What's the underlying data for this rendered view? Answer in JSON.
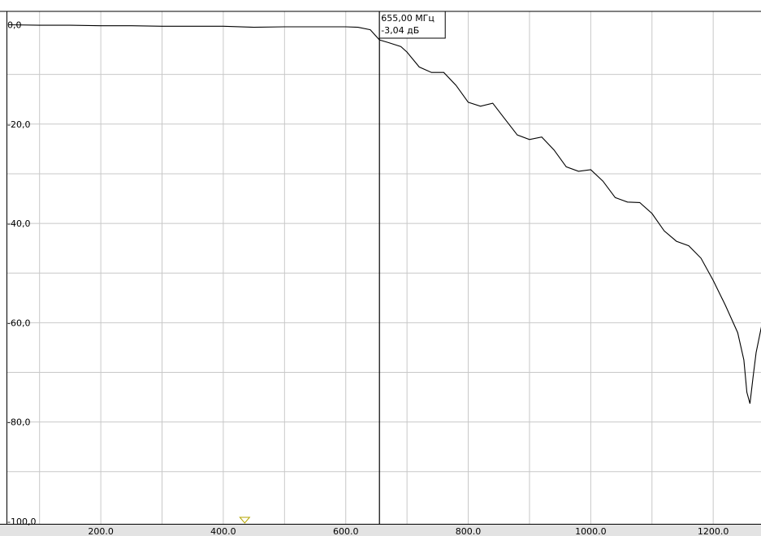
{
  "chart_data": {
    "type": "line",
    "title": "",
    "xlabel": "",
    "ylabel": "",
    "xlim": [
      50,
      1282
    ],
    "ylim": [
      -100,
      2
    ],
    "grid": true,
    "x_ticks": [
      200,
      400,
      600,
      800,
      1000,
      1200
    ],
    "x_tick_labels": [
      "200.0",
      "400.0",
      "600.0",
      "800.0",
      "1000.0",
      "1200.0"
    ],
    "y_ticks": [
      0,
      -20,
      -40,
      -60,
      -80,
      -100
    ],
    "y_tick_labels": [
      "0,0",
      "-20,0",
      "-40,0",
      "-60,0",
      "-80,0",
      "-100,0"
    ],
    "line_color": "#000000",
    "grid_color": "#c8c8c8",
    "series": [
      {
        "x": [
          50,
          100,
          150,
          200,
          250,
          300,
          350,
          400,
          450,
          500,
          550,
          600,
          620,
          640,
          655,
          670,
          690,
          700,
          720,
          740,
          760,
          780,
          800,
          820,
          840,
          860,
          880,
          900,
          920,
          940,
          960,
          980,
          1000,
          1020,
          1040,
          1060,
          1080,
          1100,
          1120,
          1140,
          1160,
          1180,
          1200,
          1220,
          1240,
          1250,
          1255,
          1260,
          1265,
          1270,
          1280
        ],
        "y": [
          0.0,
          -0.1,
          -0.1,
          -0.2,
          -0.2,
          -0.3,
          -0.3,
          -0.3,
          -0.5,
          -0.4,
          -0.4,
          -0.4,
          -0.5,
          -1.0,
          -3.04,
          -3.6,
          -4.4,
          -5.5,
          -8.5,
          -9.6,
          -9.6,
          -12.2,
          -15.6,
          -16.4,
          -15.8,
          -19.0,
          -22.2,
          -23.1,
          -22.6,
          -25.2,
          -28.6,
          -29.5,
          -29.2,
          -31.5,
          -34.8,
          -35.7,
          -35.8,
          -38.0,
          -41.5,
          -43.6,
          -44.5,
          -47.0,
          -51.5,
          -56.5,
          -62.0,
          -67.5,
          -74.0,
          -76.3,
          -71.0,
          -66.0,
          -60.0
        ]
      }
    ],
    "marker": {
      "label_freq": "655,00 МГц",
      "label_value": "-3,04 дБ",
      "x": 655,
      "y": -3.04
    },
    "reference_marker_x": 435
  }
}
